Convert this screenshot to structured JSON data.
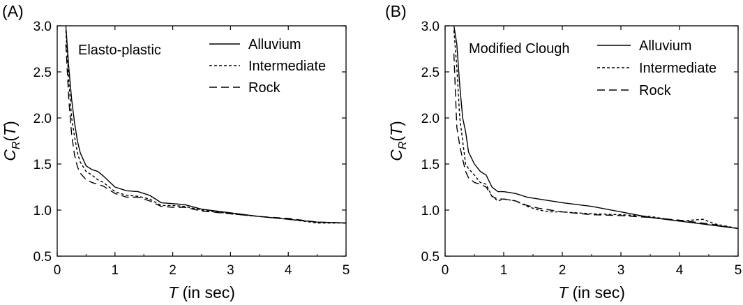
{
  "chart_data": [
    {
      "type": "line",
      "panel_label": "(A)",
      "title": "Elasto-plastic",
      "xlabel_var": "T",
      "xlabel_rest": " (in sec)",
      "ylabel_main": "C",
      "ylabel_sub": "R",
      "ylabel_paren_open": "(",
      "ylabel_var": "T",
      "ylabel_paren_close": ")",
      "xlim": [
        0,
        5
      ],
      "ylim": [
        0.5,
        3.0
      ],
      "xticks": [
        "0",
        "1",
        "2",
        "3",
        "4",
        "5"
      ],
      "yticks": [
        "0.5",
        "1.0",
        "1.5",
        "2.0",
        "2.5",
        "3.0"
      ],
      "grid": false,
      "legend_position": "top-right",
      "series": [
        {
          "name": "Alluvium",
          "style": "solid",
          "x": [
            0.15,
            0.2,
            0.25,
            0.3,
            0.35,
            0.4,
            0.5,
            0.6,
            0.7,
            0.8,
            1.0,
            1.2,
            1.4,
            1.6,
            1.8,
            2.0,
            2.2,
            2.5,
            3.0,
            3.5,
            4.0,
            4.5,
            5.0
          ],
          "y": [
            3.0,
            2.55,
            2.2,
            1.95,
            1.75,
            1.62,
            1.48,
            1.44,
            1.42,
            1.37,
            1.25,
            1.21,
            1.2,
            1.16,
            1.08,
            1.07,
            1.06,
            1.01,
            0.97,
            0.93,
            0.9,
            0.87,
            0.86
          ]
        },
        {
          "name": "Intermediate",
          "style": "dotted",
          "x": [
            0.15,
            0.2,
            0.25,
            0.3,
            0.35,
            0.4,
            0.5,
            0.6,
            0.7,
            0.8,
            1.0,
            1.2,
            1.4,
            1.6,
            1.8,
            2.0,
            2.2,
            2.5,
            3.0,
            3.5,
            4.0,
            4.5,
            5.0
          ],
          "y": [
            2.95,
            2.4,
            2.0,
            1.8,
            1.62,
            1.52,
            1.42,
            1.38,
            1.33,
            1.3,
            1.2,
            1.16,
            1.15,
            1.12,
            1.05,
            1.05,
            1.04,
            1.0,
            0.96,
            0.93,
            0.9,
            0.86,
            0.86
          ]
        },
        {
          "name": "Rock",
          "style": "dashed",
          "x": [
            0.15,
            0.2,
            0.25,
            0.3,
            0.35,
            0.4,
            0.5,
            0.6,
            0.7,
            0.8,
            1.0,
            1.2,
            1.4,
            1.6,
            1.8,
            2.0,
            2.2,
            2.5,
            3.0,
            3.5,
            4.0,
            4.5,
            5.0
          ],
          "y": [
            2.8,
            2.2,
            1.82,
            1.6,
            1.47,
            1.4,
            1.33,
            1.3,
            1.28,
            1.26,
            1.18,
            1.14,
            1.14,
            1.1,
            1.04,
            1.03,
            1.03,
            0.99,
            0.96,
            0.93,
            0.91,
            0.87,
            0.86
          ]
        }
      ]
    },
    {
      "type": "line",
      "panel_label": "(B)",
      "title": "Modified Clough",
      "xlabel_var": "T",
      "xlabel_rest": " (in sec)",
      "ylabel_main": "C",
      "ylabel_sub": "R",
      "ylabel_paren_open": "(",
      "ylabel_var": "T",
      "ylabel_paren_close": ")",
      "xlim": [
        0,
        5
      ],
      "ylim": [
        0.5,
        3.0
      ],
      "xticks": [
        "0",
        "1",
        "2",
        "3",
        "4",
        "5"
      ],
      "yticks": [
        "0.5",
        "1.0",
        "1.5",
        "2.0",
        "2.5",
        "3.0"
      ],
      "grid": false,
      "legend_position": "top-right",
      "series": [
        {
          "name": "Alluvium",
          "style": "solid",
          "x": [
            0.15,
            0.2,
            0.25,
            0.3,
            0.35,
            0.4,
            0.5,
            0.6,
            0.7,
            0.8,
            0.9,
            1.0,
            1.2,
            1.4,
            1.6,
            1.8,
            2.0,
            2.5,
            3.0,
            3.5,
            4.0,
            4.5,
            5.0
          ],
          "y": [
            3.0,
            2.8,
            2.35,
            2.0,
            1.85,
            1.63,
            1.5,
            1.42,
            1.38,
            1.25,
            1.2,
            1.2,
            1.18,
            1.14,
            1.12,
            1.1,
            1.08,
            1.04,
            0.98,
            0.92,
            0.88,
            0.84,
            0.8
          ]
        },
        {
          "name": "Intermediate",
          "style": "dotted",
          "x": [
            0.15,
            0.2,
            0.25,
            0.3,
            0.35,
            0.4,
            0.5,
            0.6,
            0.7,
            0.8,
            0.9,
            1.0,
            1.2,
            1.4,
            1.6,
            1.8,
            2.0,
            2.5,
            3.0,
            3.5,
            4.0,
            4.4,
            4.6,
            5.0
          ],
          "y": [
            2.95,
            2.55,
            2.0,
            1.75,
            1.5,
            1.45,
            1.38,
            1.3,
            1.28,
            1.15,
            1.1,
            1.12,
            1.1,
            1.04,
            1.0,
            0.98,
            0.98,
            0.96,
            0.95,
            0.93,
            0.88,
            0.9,
            0.85,
            0.8
          ]
        },
        {
          "name": "Rock",
          "style": "dashed",
          "x": [
            0.15,
            0.2,
            0.25,
            0.3,
            0.35,
            0.4,
            0.5,
            0.6,
            0.7,
            0.8,
            0.9,
            1.0,
            1.2,
            1.4,
            1.6,
            1.8,
            2.0,
            2.5,
            3.0,
            3.5,
            4.0,
            4.5,
            5.0
          ],
          "y": [
            2.7,
            1.9,
            1.7,
            1.55,
            1.42,
            1.35,
            1.3,
            1.28,
            1.25,
            1.15,
            1.12,
            1.12,
            1.1,
            1.05,
            1.02,
            1.0,
            0.98,
            0.95,
            0.94,
            0.92,
            0.89,
            0.85,
            0.8
          ]
        }
      ]
    }
  ]
}
